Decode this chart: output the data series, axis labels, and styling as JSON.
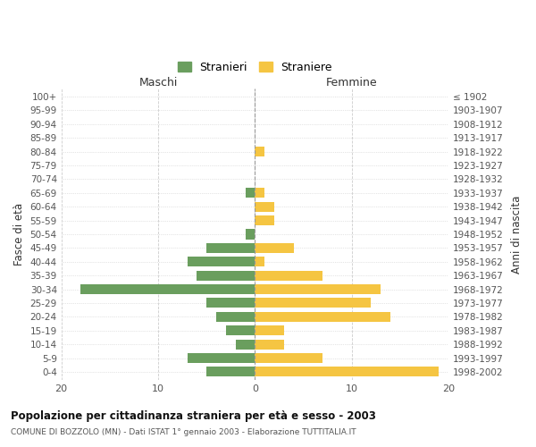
{
  "age_groups": [
    "0-4",
    "5-9",
    "10-14",
    "15-19",
    "20-24",
    "25-29",
    "30-34",
    "35-39",
    "40-44",
    "45-49",
    "50-54",
    "55-59",
    "60-64",
    "65-69",
    "70-74",
    "75-79",
    "80-84",
    "85-89",
    "90-94",
    "95-99",
    "100+"
  ],
  "birth_years": [
    "1998-2002",
    "1993-1997",
    "1988-1992",
    "1983-1987",
    "1978-1982",
    "1973-1977",
    "1968-1972",
    "1963-1967",
    "1958-1962",
    "1953-1957",
    "1948-1952",
    "1943-1947",
    "1938-1942",
    "1933-1937",
    "1928-1932",
    "1923-1927",
    "1918-1922",
    "1913-1917",
    "1908-1912",
    "1903-1907",
    "≤ 1902"
  ],
  "stranieri": [
    5,
    7,
    2,
    3,
    4,
    5,
    18,
    6,
    7,
    5,
    1,
    0,
    0,
    1,
    0,
    0,
    0,
    0,
    0,
    0,
    0
  ],
  "straniere": [
    19,
    7,
    3,
    3,
    14,
    12,
    13,
    7,
    1,
    4,
    0,
    2,
    2,
    1,
    0,
    0,
    1,
    0,
    0,
    0,
    0
  ],
  "color_stranieri": "#6a9e5e",
  "color_straniere": "#f5c542",
  "xlim": 20,
  "title": "Popolazione per cittadinanza straniera per età e sesso - 2003",
  "subtitle": "COMUNE DI BOZZOLO (MN) - Dati ISTAT 1° gennaio 2003 - Elaborazione TUTTITALIA.IT",
  "ylabel_left": "Fasce di età",
  "ylabel_right": "Anni di nascita",
  "label_maschi": "Maschi",
  "label_femmine": "Femmine",
  "legend_stranieri": "Stranieri",
  "legend_straniere": "Straniere",
  "bg_color": "#ffffff",
  "grid_color": "#cccccc",
  "tick_color": "#555555"
}
